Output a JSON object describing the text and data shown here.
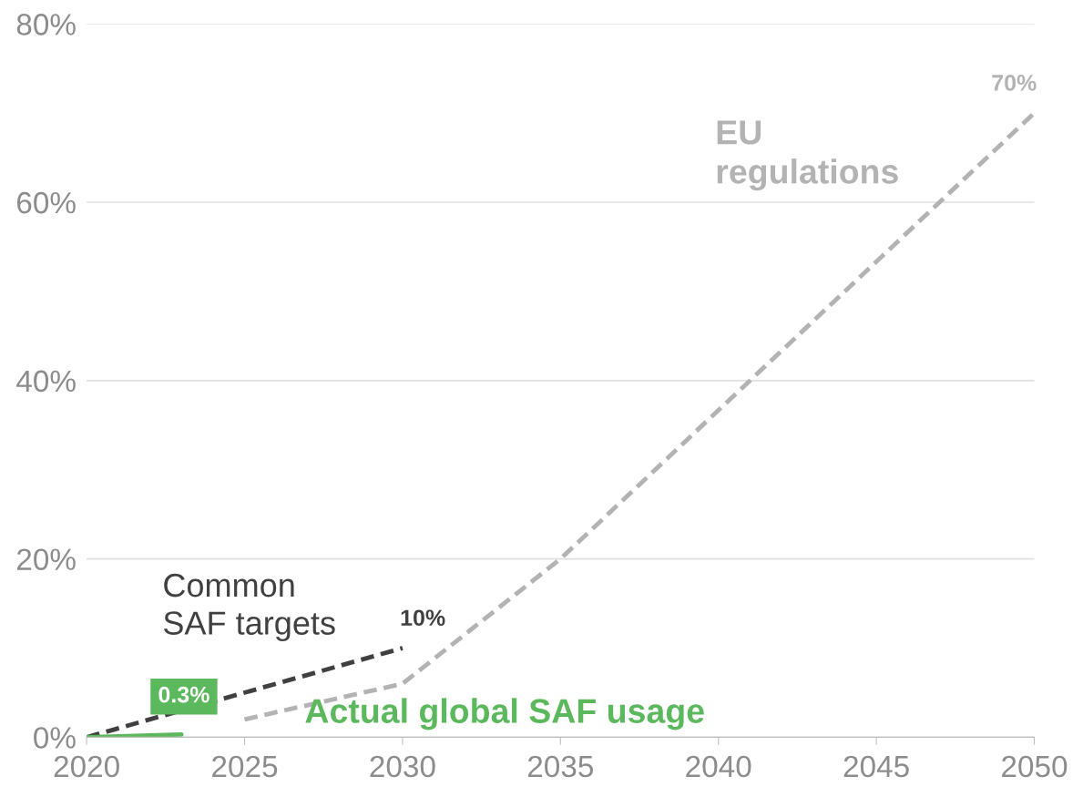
{
  "chart_data": {
    "type": "line",
    "xlim": [
      2020,
      2050
    ],
    "xticks": [
      2020,
      2025,
      2030,
      2035,
      2040,
      2045,
      2050
    ],
    "ylim": [
      0,
      80
    ],
    "yticks": [
      {
        "value": 0,
        "label": "0%"
      },
      {
        "value": 20,
        "label": "20%"
      },
      {
        "value": 40,
        "label": "40%"
      },
      {
        "value": 60,
        "label": "60%"
      },
      {
        "value": 80,
        "label": "80%"
      }
    ],
    "grid": "y",
    "legend": false,
    "series": [
      {
        "name": "EU regulations",
        "color": "#b3b3b3",
        "line_style": "dashed",
        "x": [
          2025,
          2030,
          2035,
          2050
        ],
        "values": [
          2,
          6,
          20,
          70
        ],
        "value_labels": [
          null,
          null,
          null,
          "70%"
        ]
      },
      {
        "name": "Common SAF targets",
        "color": "#404040",
        "line_style": "dashed",
        "x": [
          2020,
          2030
        ],
        "values": [
          0,
          10
        ],
        "value_labels": [
          null,
          "10%"
        ]
      },
      {
        "name": "Actual global SAF usage",
        "color": "#5cb85c",
        "line_style": "solid",
        "x": [
          2020,
          2023
        ],
        "values": [
          0,
          0.3
        ],
        "value_labels": [
          null,
          "0.3%"
        ]
      }
    ]
  }
}
